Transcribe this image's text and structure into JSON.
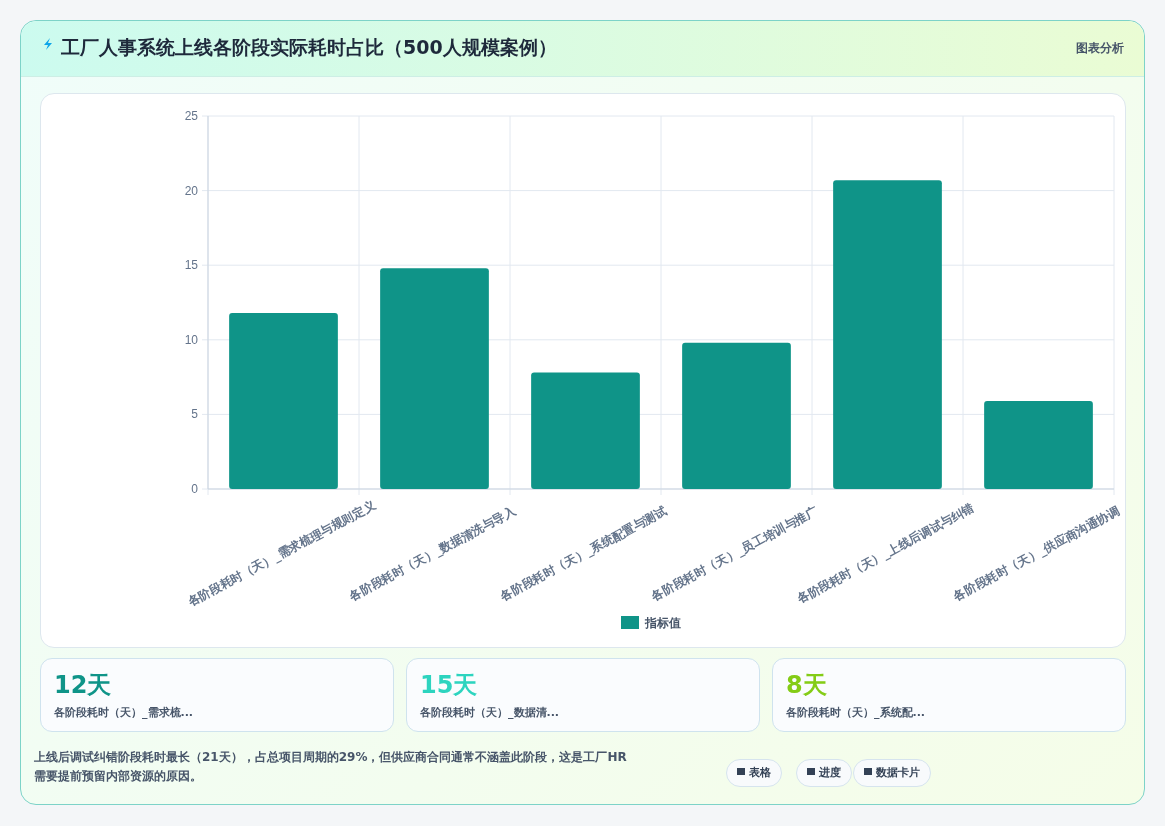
{
  "chart_data": [
    {
      "type": "bar",
      "title": "工厂人事系统上线各阶段实际耗时占比（500人规模案例）",
      "categories": [
        "各阶段耗时（天）_需求梳理与规则定义",
        "各阶段耗时（天）_数据清洗与导入",
        "各阶段耗时（天）_系统配置与测试",
        "各阶段耗时（天）_员工培训与推广",
        "各阶段耗时（天）_上线后调试与纠错",
        "各阶段耗时（天）_供应商沟通协调"
      ],
      "series": [
        {
          "name": "指标值",
          "color": "#0f9488",
          "values": [
            11.8,
            14.8,
            7.8,
            9.8,
            20.7,
            5.9
          ]
        }
      ],
      "ylim": [
        0,
        25
      ],
      "yticks": [
        0,
        5,
        10,
        15,
        20,
        25
      ],
      "grid": true,
      "legend": "bottom",
      "annotations": [
        "图表分析",
        "上线后调试纠错阶段耗时最长（21天），占总项目周期的29%，但供应商合同通常不涵盖此阶段，这是工厂HR需要提前预留内部资源的原因。",
        "表格",
        "进度",
        "数据卡片"
      ]
    },
    {
      "type": "other",
      "annotations": [
        "12天",
        "各阶段耗时（天）_需求梳...",
        "15天",
        "各阶段耗时（天）_数据清...",
        "8天",
        "各阶段耗时（天）_系统配..."
      ]
    }
  ]
}
